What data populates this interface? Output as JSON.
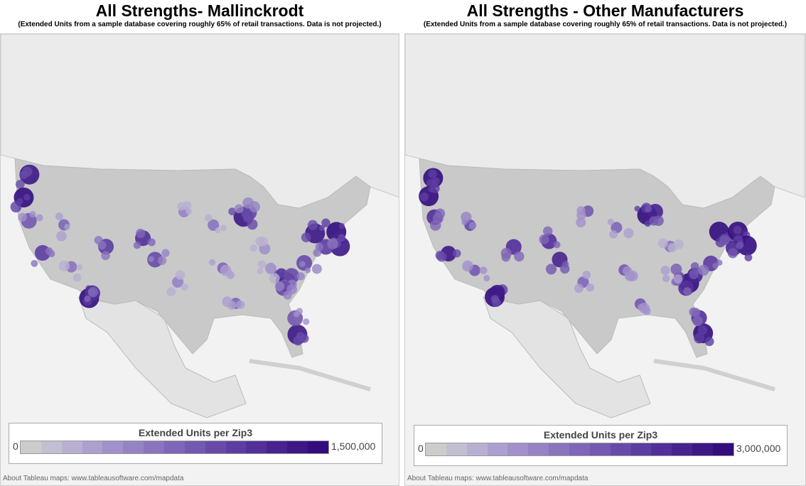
{
  "panels": [
    {
      "title": "All Strengths- Mallinckrodt",
      "subtitle": "(Extended Units from a sample database covering roughly 65% of retail transactions. Data is not projected.)",
      "legend": {
        "title": "Extended Units per Zip3",
        "min": "0",
        "max": "1,500,000"
      },
      "credit": "About Tableau maps: www.tableausoftware.com/mapdata"
    },
    {
      "title": "All Strengths - Other Manufacturers",
      "subtitle": "(Extended Units from a sample database covering roughly 65% of retail transactions. Data is not projected.)",
      "legend": {
        "title": "Extended Units per Zip3",
        "min": "0",
        "max": "3,000,000"
      },
      "credit": "About Tableau maps: www.tableausoftware.com/mapdata"
    }
  ],
  "color_scale": [
    "#cccccc",
    "#c3bfd2",
    "#b9b0d1",
    "#ad9fcf",
    "#a291cb",
    "#9683c5",
    "#8a74be",
    "#7f66b8",
    "#7359b0",
    "#684ba9",
    "#5c3da1",
    "#522f99",
    "#47238f",
    "#3d1786",
    "#330c7e"
  ]
}
